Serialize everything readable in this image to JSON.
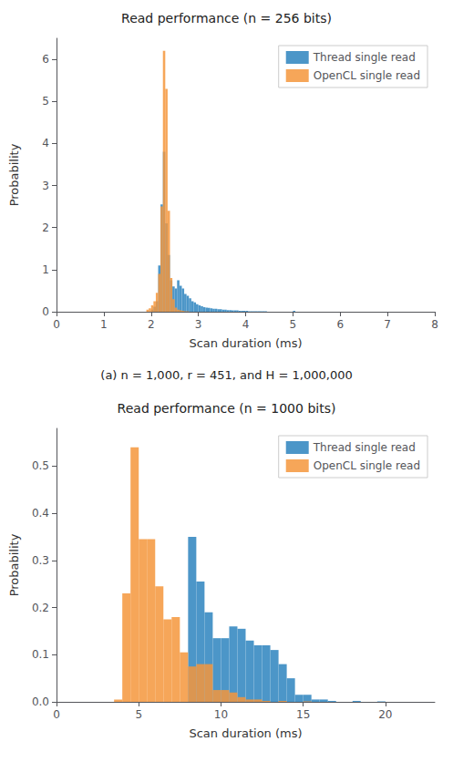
{
  "chart_data": [
    {
      "type": "histogram",
      "title": "Read performance (n = 256 bits)",
      "xlabel": "Scan duration (ms)",
      "ylabel": "Probability",
      "caption": "(a) n = 1,000, r = 451, and H = 1,000,000",
      "xlim": [
        0,
        8
      ],
      "ylim": [
        0,
        6.5
      ],
      "xticks": [
        0,
        1,
        2,
        3,
        4,
        5,
        6,
        7,
        8
      ],
      "yticks": [
        0,
        1,
        2,
        3,
        4,
        5,
        6
      ],
      "grid": false,
      "legend": "upper right",
      "series": [
        {
          "name": "Thread single read",
          "color": "#4C96C8",
          "bins": [
            2.0,
            2.05,
            2.1,
            2.15,
            2.2,
            2.25,
            2.3,
            2.35,
            2.4,
            2.45,
            2.5,
            2.55,
            2.6,
            2.65,
            2.7,
            2.75,
            2.8,
            2.85,
            2.9,
            2.95,
            3.0,
            3.05,
            3.1,
            3.15,
            3.2,
            3.25,
            3.3,
            3.35,
            3.4,
            3.45,
            3.5,
            3.55,
            3.6,
            3.65,
            3.7,
            3.75,
            3.8,
            3.85,
            3.9,
            3.95,
            4.0,
            4.05,
            4.1,
            4.15,
            4.2,
            4.25,
            4.3,
            4.35,
            4.4,
            4.45,
            4.5,
            4.55,
            4.6,
            4.65,
            4.7,
            4.75,
            4.8,
            4.85,
            4.9,
            4.95,
            5.0,
            5.05
          ],
          "values": [
            0.05,
            0.12,
            0.25,
            1.1,
            2.55,
            3.8,
            2.1,
            1.35,
            0.75,
            0.6,
            0.55,
            0.75,
            0.62,
            0.55,
            0.42,
            0.38,
            0.32,
            0.25,
            0.22,
            0.18,
            0.15,
            0.13,
            0.11,
            0.1,
            0.09,
            0.08,
            0.07,
            0.07,
            0.06,
            0.06,
            0.05,
            0.05,
            0.04,
            0.04,
            0.03,
            0.03,
            0.03,
            0.02,
            0.02,
            0.02,
            0.02,
            0.01,
            0.01,
            0.01,
            0.01,
            0.01,
            0.01,
            0.01,
            0.01,
            0.0,
            0.0,
            0.0,
            0.0,
            0.0,
            0.0,
            0.0,
            0.0,
            0.0,
            0.0,
            0.0,
            0.02
          ]
        },
        {
          "name": "OpenCL single read",
          "color": "#F5963C",
          "bins": [
            1.9,
            1.95,
            2.0,
            2.05,
            2.1,
            2.15,
            2.2,
            2.25,
            2.3,
            2.35,
            2.4,
            2.45,
            2.5,
            2.55,
            2.6,
            2.65,
            2.7,
            2.75,
            2.8,
            2.85,
            2.9,
            2.95
          ],
          "values": [
            0.05,
            0.08,
            0.15,
            0.25,
            0.45,
            0.9,
            2.5,
            6.2,
            5.3,
            2.4,
            0.8,
            0.3,
            0.1,
            0.05,
            0.03,
            0.02,
            0.01,
            0.01,
            0.0,
            0.0,
            0.0
          ]
        }
      ]
    },
    {
      "type": "histogram",
      "title": "Read performance (n = 1000 bits)",
      "xlabel": "Scan duration (ms)",
      "ylabel": "Probability",
      "xlim": [
        0,
        23
      ],
      "ylim": [
        0,
        0.58
      ],
      "xticks": [
        0,
        5,
        10,
        15,
        20
      ],
      "yticks": [
        {
          "value": 0,
          "label": "0.0"
        },
        0.1,
        0.2,
        0.3,
        0.4,
        0.5
      ],
      "grid": false,
      "legend": "upper right",
      "series": [
        {
          "name": "Thread single read",
          "color": "#4C96C8",
          "bins": [
            8.0,
            8.5,
            9.0,
            9.5,
            10.0,
            10.5,
            11.0,
            11.5,
            12.0,
            12.5,
            13.0,
            13.5,
            14.0,
            14.5,
            15.0,
            15.5,
            16.0,
            16.5,
            17.0,
            17.5,
            18.0,
            18.5,
            19.0,
            19.5,
            20.0
          ],
          "values": [
            0.35,
            0.255,
            0.19,
            0.135,
            0.135,
            0.16,
            0.155,
            0.13,
            0.12,
            0.12,
            0.11,
            0.08,
            0.05,
            0.015,
            0.015,
            0.005,
            0.005,
            0.002,
            0.0,
            0.0,
            0.002,
            0.0,
            0.0,
            0.001
          ]
        },
        {
          "name": "OpenCL single read",
          "color": "#F5963C",
          "bins": [
            3.5,
            4.0,
            4.5,
            5.0,
            5.5,
            6.0,
            6.5,
            7.0,
            7.5,
            8.0,
            8.5,
            9.0,
            9.5,
            10.0,
            10.5,
            11.0,
            11.5,
            12.0,
            12.5,
            13.0,
            13.5,
            14.0,
            14.5,
            15.0,
            15.5
          ],
          "values": [
            0.005,
            0.23,
            0.54,
            0.345,
            0.345,
            0.245,
            0.175,
            0.18,
            0.105,
            0.075,
            0.08,
            0.08,
            0.025,
            0.025,
            0.02,
            0.01,
            0.005,
            0.005,
            0.002,
            0.0,
            0.002,
            0.0,
            0.0,
            0.001
          ]
        }
      ]
    }
  ]
}
